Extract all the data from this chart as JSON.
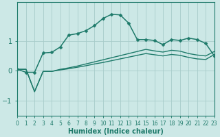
{
  "xlabel": "Humidex (Indice chaleur)",
  "background_color": "#cce8e6",
  "grid_color": "#a8ccca",
  "line_color": "#1e7a6a",
  "x_ticks": [
    0,
    1,
    2,
    3,
    4,
    5,
    6,
    7,
    8,
    9,
    10,
    11,
    12,
    13,
    14,
    15,
    16,
    17,
    18,
    19,
    20,
    21,
    22,
    23
  ],
  "y_ticks": [
    -1,
    0,
    1
  ],
  "xlim": [
    0,
    23
  ],
  "ylim": [
    -1.5,
    2.3
  ],
  "series": [
    {
      "x": [
        0,
        1,
        2,
        3,
        4,
        5,
        6,
        7,
        8,
        9,
        10,
        11,
        12,
        13,
        14,
        15,
        16,
        17,
        18,
        19,
        20,
        21,
        22,
        23
      ],
      "y": [
        0.05,
        -0.05,
        -0.05,
        0.6,
        0.62,
        0.8,
        1.2,
        1.25,
        1.35,
        1.52,
        1.76,
        1.9,
        1.88,
        1.6,
        1.05,
        1.05,
        1.02,
        0.88,
        1.05,
        1.02,
        1.1,
        1.05,
        0.92,
        0.5
      ],
      "marker": "D",
      "markersize": 2.5,
      "linewidth": 1.1
    },
    {
      "x": [
        0,
        1,
        2,
        3,
        4,
        5,
        6,
        7,
        8,
        9,
        10,
        11,
        12,
        13,
        14,
        15,
        16,
        17,
        18,
        19,
        20,
        21,
        22,
        23
      ],
      "y": [
        0.05,
        0.05,
        -0.7,
        -0.02,
        -0.02,
        0.03,
        0.07,
        0.12,
        0.17,
        0.23,
        0.28,
        0.34,
        0.4,
        0.46,
        0.52,
        0.58,
        0.54,
        0.5,
        0.55,
        0.52,
        0.45,
        0.4,
        0.38,
        0.55
      ],
      "marker": null,
      "linewidth": 1.0
    },
    {
      "x": [
        0,
        1,
        2,
        3,
        4,
        5,
        6,
        7,
        8,
        9,
        10,
        11,
        12,
        13,
        14,
        15,
        16,
        17,
        18,
        19,
        20,
        21,
        22,
        23
      ],
      "y": [
        0.05,
        0.05,
        -0.7,
        -0.02,
        -0.02,
        0.05,
        0.1,
        0.16,
        0.23,
        0.3,
        0.37,
        0.44,
        0.51,
        0.58,
        0.65,
        0.72,
        0.67,
        0.63,
        0.69,
        0.66,
        0.58,
        0.53,
        0.5,
        0.65
      ],
      "marker": null,
      "linewidth": 1.0
    }
  ]
}
